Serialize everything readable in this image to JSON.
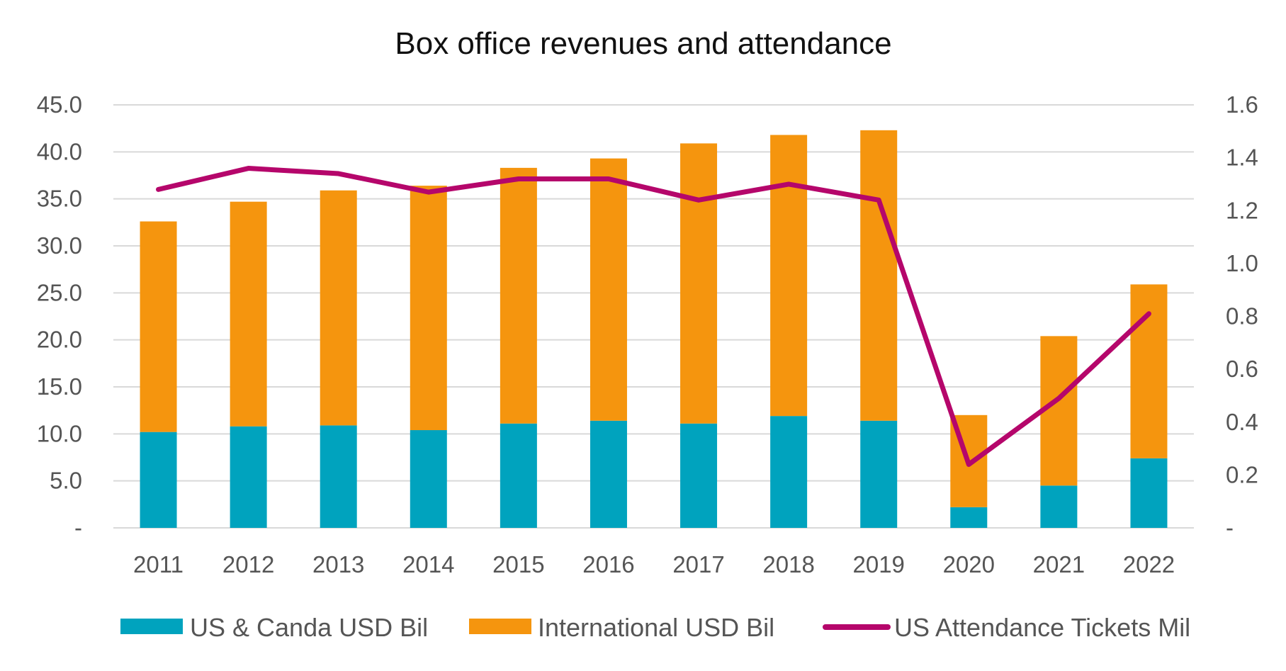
{
  "chart_data": {
    "type": "bar",
    "stacked": true,
    "title": "Box office revenues and attendance",
    "categories": [
      "2011",
      "2012",
      "2013",
      "2014",
      "2015",
      "2016",
      "2017",
      "2018",
      "2019",
      "2020",
      "2021",
      "2022"
    ],
    "series": [
      {
        "name": "US & Canda USD Bil",
        "type": "bar",
        "axis": "left",
        "color": "#00A3BE",
        "values": [
          10.2,
          10.8,
          10.9,
          10.4,
          11.1,
          11.4,
          11.1,
          11.9,
          11.4,
          2.2,
          4.5,
          7.4
        ]
      },
      {
        "name": "International USD Bil",
        "type": "bar",
        "axis": "left",
        "color": "#F5950E",
        "values": [
          22.4,
          23.9,
          25.0,
          26.0,
          27.2,
          27.9,
          29.8,
          29.9,
          30.9,
          9.8,
          15.9,
          18.5
        ]
      },
      {
        "name": "US Attendance Tickets Mil",
        "type": "line",
        "axis": "right",
        "color": "#B5066B",
        "values": [
          1.28,
          1.36,
          1.34,
          1.27,
          1.32,
          1.32,
          1.24,
          1.3,
          1.24,
          0.24,
          0.49,
          0.81
        ]
      }
    ],
    "y_left": {
      "min": 0,
      "max": 45,
      "ticks": [
        0,
        5,
        10,
        15,
        20,
        25,
        30,
        35,
        40,
        45
      ],
      "tick_labels": [
        "-",
        "5.0",
        "10.0",
        "15.0",
        "20.0",
        "25.0",
        "30.0",
        "35.0",
        "40.0",
        "45.0"
      ]
    },
    "y_right": {
      "min": 0,
      "max": 1.6,
      "ticks": [
        0,
        0.2,
        0.4,
        0.6,
        0.8,
        1.0,
        1.2,
        1.4,
        1.6
      ],
      "tick_labels": [
        "-",
        "0.2",
        "0.4",
        "0.6",
        "0.8",
        "1.0",
        "1.2",
        "1.4",
        "1.6"
      ]
    },
    "grid": true,
    "gridline_color": "#D9D9D9",
    "legend_position": "bottom"
  }
}
